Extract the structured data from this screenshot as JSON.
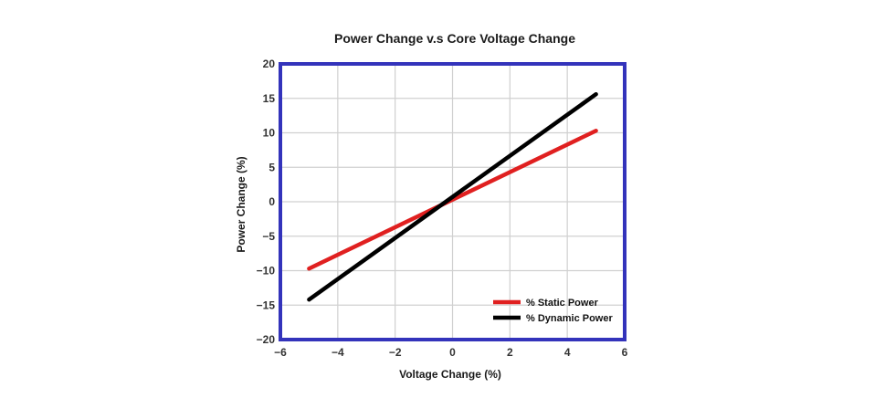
{
  "chart_data": {
    "type": "line",
    "title": "Power Change v.s Core Voltage Change",
    "xlabel": "Voltage Change (%)",
    "ylabel": "Power Change (%)",
    "xlim": [
      -6,
      6
    ],
    "ylim": [
      -20,
      20
    ],
    "x_ticks": [
      -6,
      -4,
      -2,
      0,
      2,
      4,
      6
    ],
    "y_ticks": [
      -20,
      -15,
      -10,
      -5,
      0,
      5,
      10,
      15,
      20
    ],
    "x_tick_labels": [
      "−6",
      "−4",
      "−2",
      "0",
      "2",
      "4",
      "6"
    ],
    "y_tick_labels": [
      "−20",
      "−15",
      "−10",
      "−5",
      "0",
      "5",
      "10",
      "15",
      "20"
    ],
    "grid": true,
    "legend_position": "bottom-right",
    "series": [
      {
        "name": "% Static Power",
        "color": "#e02020",
        "x": [
          -5,
          5
        ],
        "y": [
          -9.7,
          10.3
        ]
      },
      {
        "name": "% Dynamic Power",
        "color": "#000000",
        "x": [
          -5,
          5
        ],
        "y": [
          -14.2,
          15.6
        ]
      }
    ],
    "frame_color": "#3333bb",
    "grid_color": "#d0d0d0"
  }
}
